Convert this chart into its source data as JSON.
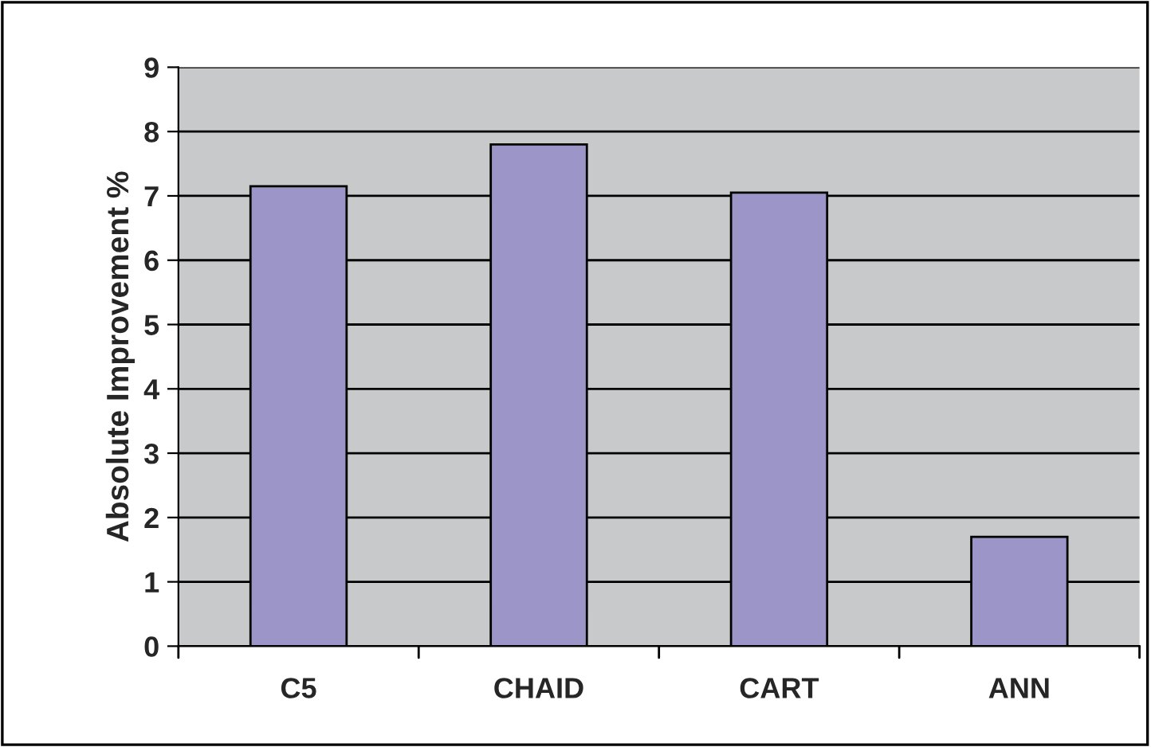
{
  "chart_data": {
    "type": "bar",
    "ylabel": "Absolute Improvement %",
    "categories": [
      "C5",
      "CHAID",
      "CART",
      "ANN"
    ],
    "values": [
      7.15,
      7.8,
      7.05,
      1.7
    ],
    "color": "#9c96c8",
    "ylim": [
      0,
      9
    ],
    "yticks": [
      0,
      1,
      2,
      3,
      4,
      5,
      6,
      7,
      8,
      9
    ],
    "grid": "y",
    "legend": false
  }
}
